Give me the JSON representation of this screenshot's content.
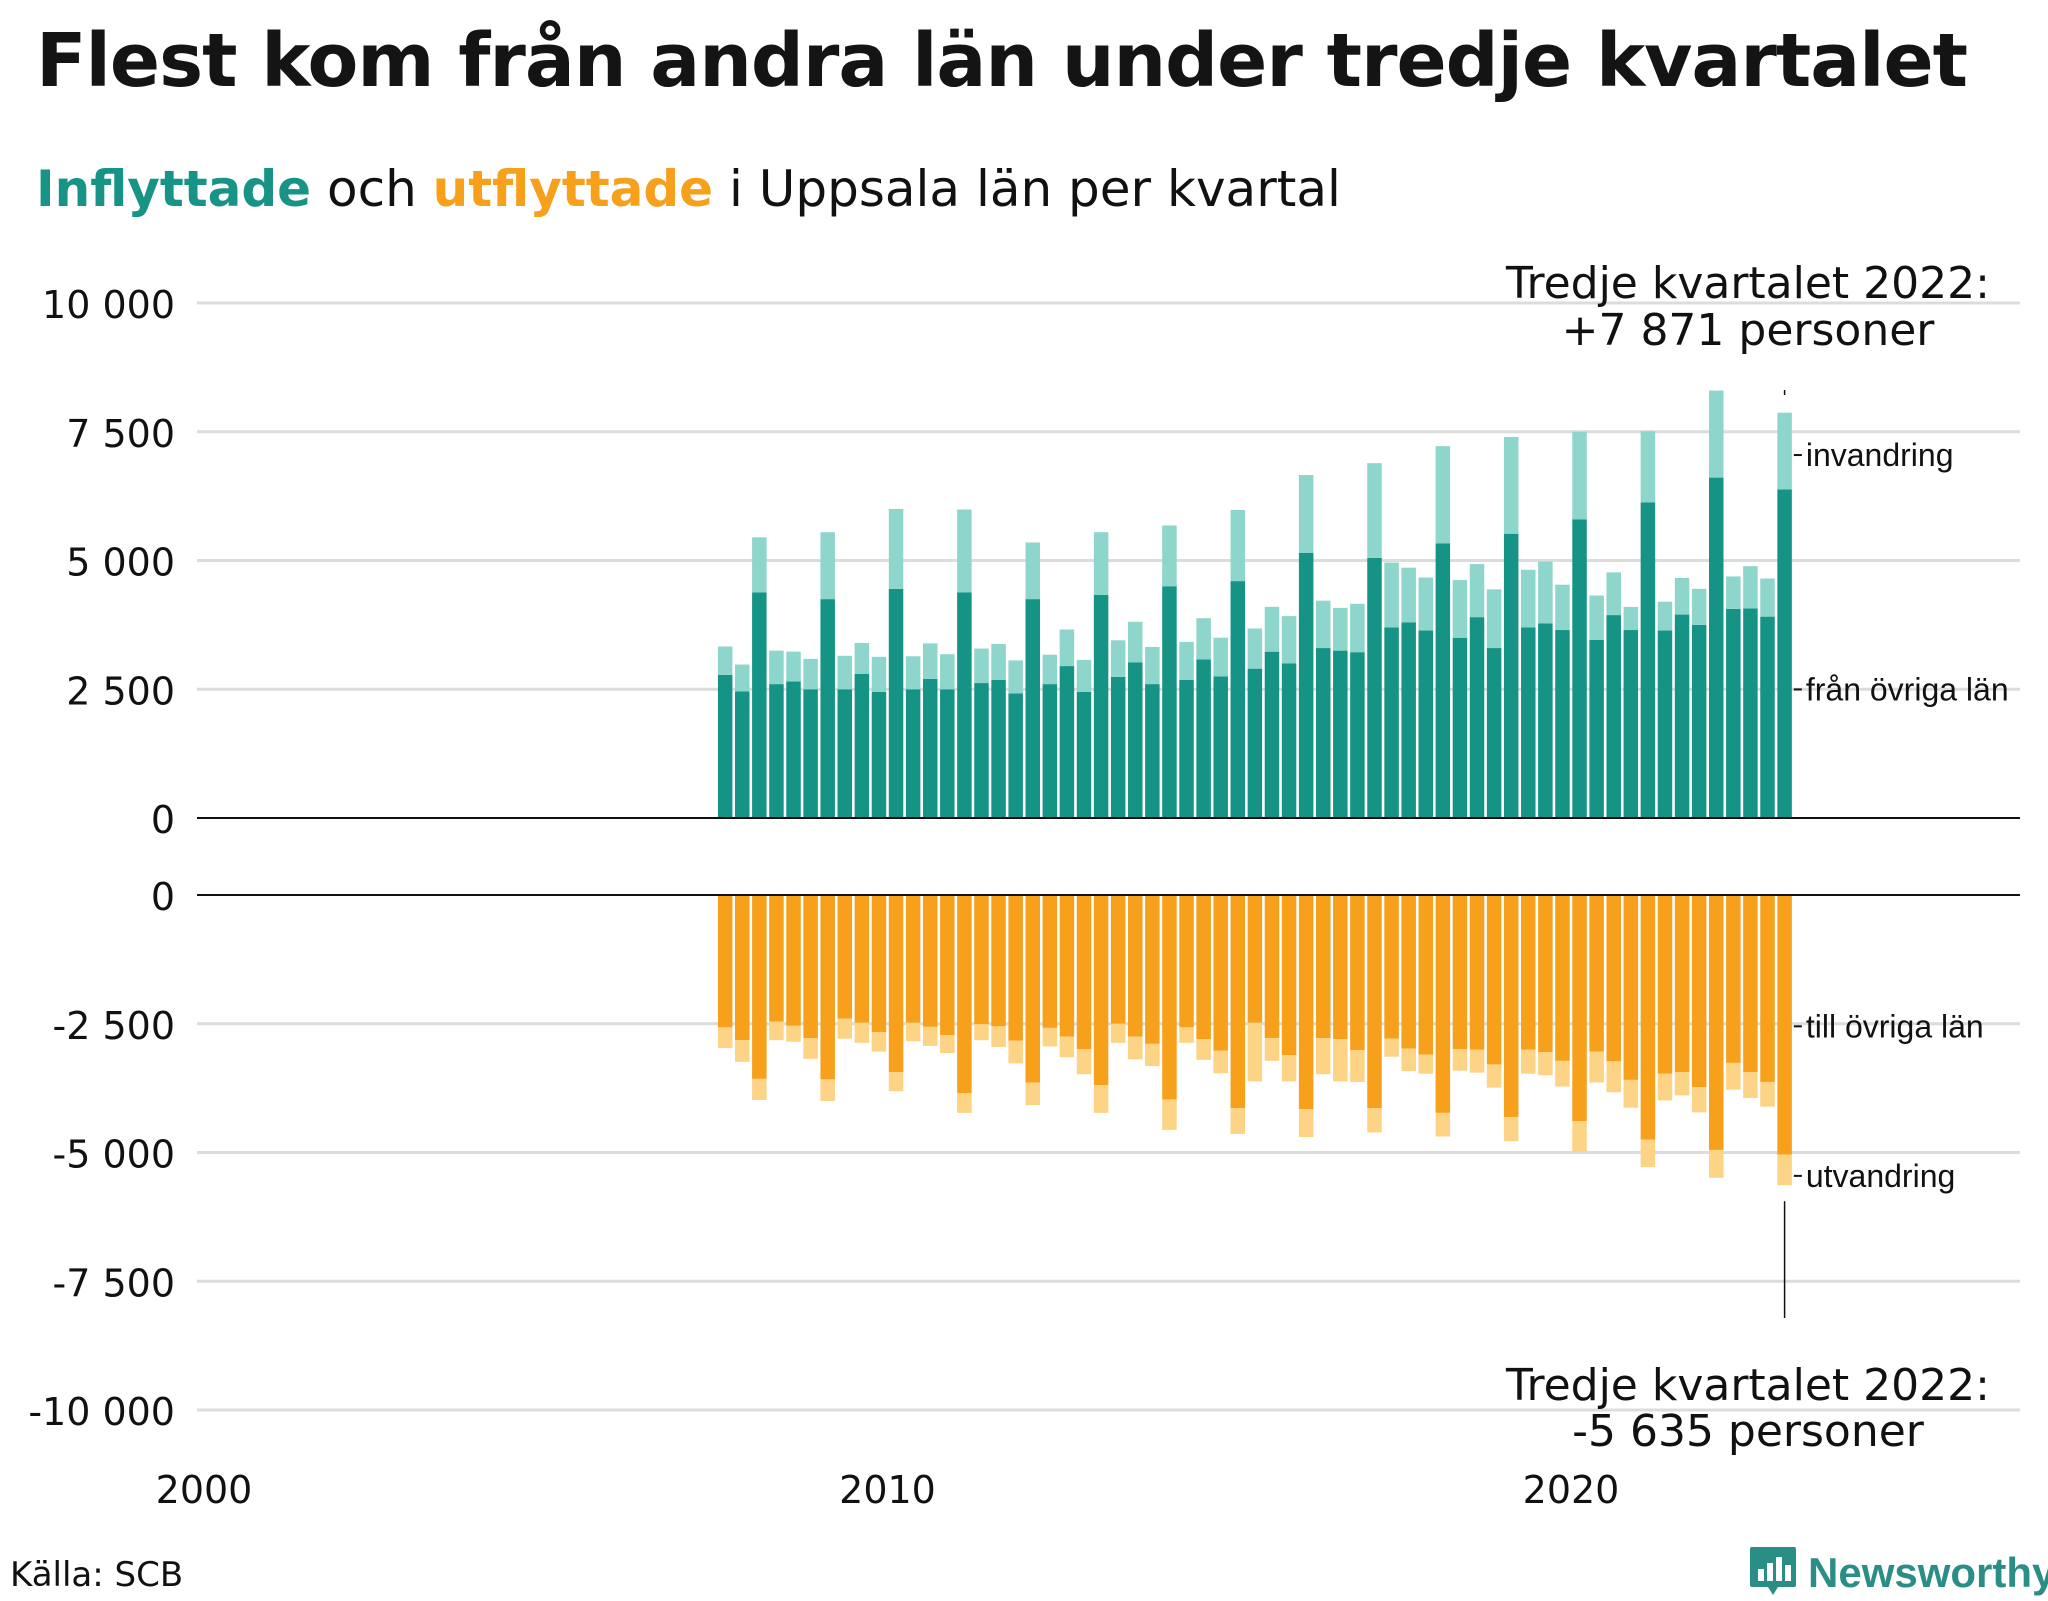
{
  "title": "Flest kom från andra län under tredje kvartalet",
  "subtitle": {
    "word_in": "Inflyttade",
    "middle": " och ",
    "word_out": "utflyttade",
    "rest": " i Uppsala län per kvartal"
  },
  "colors": {
    "in_dark": "#159486",
    "in_light": "#8ed5cb",
    "out_dark": "#f6a01b",
    "out_light": "#fdd385",
    "grid": "#dcdcdc"
  },
  "source": "Källa: SCB",
  "brand": "Newsworthy",
  "chart_data": {
    "type": "bar",
    "x_ticks": [
      "2000",
      "2010",
      "2020"
    ],
    "y_ticks_top": [
      "10 000",
      "7 500",
      "5 000",
      "2 500",
      "0"
    ],
    "y_ticks_bottom": [
      "0",
      "-2 500",
      "-5 000",
      "-7 500",
      "-10 000"
    ],
    "top_range": [
      0,
      10000
    ],
    "bottom_range": [
      -10000,
      0
    ],
    "start_year": 2007,
    "start_quarter": 3,
    "series": [
      {
        "name": "från övriga län",
        "values": [
          2780,
          2460,
          4380,
          2600,
          2650,
          2500,
          4250,
          2500,
          2800,
          2450,
          4450,
          2500,
          2700,
          2500,
          4380,
          2620,
          2680,
          2420,
          4250,
          2600,
          2950,
          2450,
          4330,
          2740,
          3020,
          2600,
          4500,
          2680,
          3080,
          2750,
          4600,
          2900,
          3230,
          3000,
          5150,
          3300,
          3250,
          3220,
          5050,
          3700,
          3800,
          3640,
          5330,
          3500,
          3900,
          3300,
          5520,
          3700,
          3780,
          3650,
          5800,
          3460,
          3940,
          3650,
          6130,
          3640,
          3950,
          3750,
          6610,
          4060,
          4070,
          3910,
          6380
        ]
      },
      {
        "name": "invandring",
        "values": [
          550,
          520,
          1070,
          650,
          580,
          590,
          1300,
          650,
          600,
          680,
          1550,
          640,
          690,
          680,
          1610,
          670,
          700,
          640,
          1100,
          570,
          710,
          620,
          1220,
          710,
          790,
          720,
          1180,
          740,
          800,
          750,
          1380,
          780,
          870,
          920,
          1510,
          920,
          830,
          940,
          1840,
          1260,
          1060,
          1030,
          1890,
          1120,
          1030,
          1140,
          1880,
          1120,
          1200,
          880,
          1700,
          860,
          830,
          450,
          1380,
          560,
          710,
          700,
          1690,
          630,
          820,
          740,
          1491
        ]
      },
      {
        "name": "till övriga län",
        "values": [
          -2570,
          -2820,
          -3570,
          -2460,
          -2540,
          -2780,
          -3580,
          -2400,
          -2480,
          -2660,
          -3440,
          -2480,
          -2560,
          -2720,
          -3850,
          -2510,
          -2550,
          -2830,
          -3640,
          -2580,
          -2750,
          -2990,
          -3690,
          -2500,
          -2750,
          -2890,
          -3970,
          -2570,
          -2800,
          -3020,
          -4140,
          -2480,
          -2780,
          -3110,
          -4160,
          -2780,
          -2800,
          -3010,
          -4140,
          -2790,
          -2980,
          -3100,
          -4230,
          -2990,
          -3000,
          -3290,
          -4310,
          -3000,
          -3050,
          -3220,
          -4390,
          -3040,
          -3230,
          -3590,
          -4750,
          -3470,
          -3440,
          -3730,
          -4950,
          -3260,
          -3440,
          -3630,
          -5040
        ]
      },
      {
        "name": "utvandring",
        "values": [
          -400,
          -420,
          -410,
          -360,
          -310,
          -400,
          -420,
          -390,
          -390,
          -380,
          -370,
          -360,
          -370,
          -350,
          -380,
          -310,
          -400,
          -440,
          -440,
          -360,
          -400,
          -490,
          -540,
          -370,
          -440,
          -430,
          -590,
          -300,
          -400,
          -440,
          -500,
          -1140,
          -440,
          -510,
          -540,
          -700,
          -820,
          -620,
          -470,
          -350,
          -440,
          -370,
          -460,
          -420,
          -450,
          -450,
          -470,
          -470,
          -450,
          -500,
          -600,
          -600,
          -600,
          -540,
          -530,
          -520,
          -450,
          -490,
          -540,
          -520,
          -500,
          -480,
          -595
        ]
      }
    ],
    "annotations": [
      {
        "line1": "Tredje kvartalet 2022:",
        "line2": "+7 871 personer"
      },
      {
        "line1": "Tredje kvartalet 2022:",
        "line2": "-5 635 personer"
      }
    ],
    "series_labels": [
      "invandring",
      "från övriga län",
      "till övriga län",
      "utvandring"
    ]
  }
}
